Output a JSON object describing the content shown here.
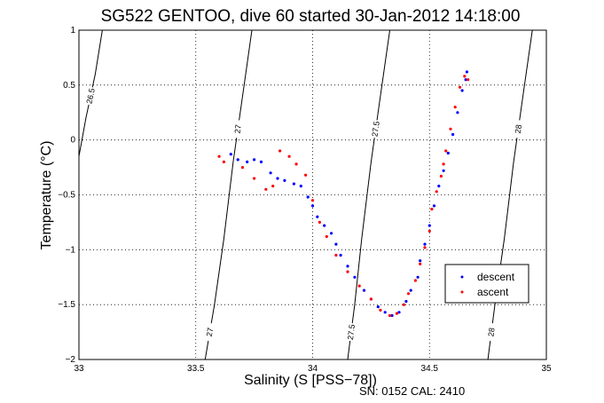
{
  "chart_data": {
    "type": "scatter",
    "title": "SG522 GENTOO, dive 60 started 30-Jan-2012 14:18:00",
    "xlabel": "Salinity (S [PSS−78])",
    "ylabel": "Temperature (°C)",
    "xlim": [
      33,
      35
    ],
    "ylim": [
      -2,
      1
    ],
    "x_ticks": [
      "33",
      "33.5",
      "34",
      "34.5",
      "35"
    ],
    "y_ticks": [
      "1",
      "0.5",
      "0",
      "−0.5",
      "−1",
      "−1.5",
      "−2"
    ],
    "grid": true,
    "legend_position": "lower-right",
    "series": [
      {
        "name": "descent",
        "color": "#0000ff",
        "points": [
          [
            33.65,
            -0.13
          ],
          [
            33.68,
            -0.18
          ],
          [
            33.72,
            -0.2
          ],
          [
            33.75,
            -0.18
          ],
          [
            33.78,
            -0.2
          ],
          [
            33.82,
            -0.3
          ],
          [
            33.85,
            -0.35
          ],
          [
            33.88,
            -0.37
          ],
          [
            33.92,
            -0.4
          ],
          [
            33.95,
            -0.42
          ],
          [
            33.98,
            -0.52
          ],
          [
            34.0,
            -0.6
          ],
          [
            34.02,
            -0.7
          ],
          [
            34.05,
            -0.78
          ],
          [
            34.08,
            -0.85
          ],
          [
            34.1,
            -0.95
          ],
          [
            34.12,
            -1.05
          ],
          [
            34.15,
            -1.15
          ],
          [
            34.18,
            -1.25
          ],
          [
            34.22,
            -1.37
          ],
          [
            34.25,
            -1.45
          ],
          [
            34.28,
            -1.52
          ],
          [
            34.31,
            -1.57
          ],
          [
            34.34,
            -1.6
          ],
          [
            34.37,
            -1.57
          ],
          [
            34.4,
            -1.47
          ],
          [
            34.42,
            -1.37
          ],
          [
            34.45,
            -1.25
          ],
          [
            34.46,
            -1.1
          ],
          [
            34.48,
            -0.95
          ],
          [
            34.5,
            -0.78
          ],
          [
            34.52,
            -0.6
          ],
          [
            34.54,
            -0.42
          ],
          [
            34.56,
            -0.28
          ],
          [
            34.58,
            -0.12
          ],
          [
            34.6,
            0.05
          ],
          [
            34.62,
            0.25
          ],
          [
            34.64,
            0.45
          ],
          [
            34.655,
            0.55
          ],
          [
            34.66,
            0.62
          ]
        ]
      },
      {
        "name": "ascent",
        "color": "#ff0000",
        "points": [
          [
            33.6,
            -0.15
          ],
          [
            33.62,
            -0.2
          ],
          [
            33.7,
            -0.25
          ],
          [
            33.75,
            -0.35
          ],
          [
            33.8,
            -0.45
          ],
          [
            33.83,
            -0.42
          ],
          [
            33.86,
            -0.1
          ],
          [
            33.9,
            -0.15
          ],
          [
            33.93,
            -0.22
          ],
          [
            33.97,
            -0.32
          ],
          [
            34.0,
            -0.55
          ],
          [
            34.03,
            -0.75
          ],
          [
            34.06,
            -0.88
          ],
          [
            34.1,
            -1.05
          ],
          [
            34.15,
            -1.2
          ],
          [
            34.2,
            -1.33
          ],
          [
            34.25,
            -1.45
          ],
          [
            34.29,
            -1.55
          ],
          [
            34.33,
            -1.6
          ],
          [
            34.36,
            -1.58
          ],
          [
            34.39,
            -1.5
          ],
          [
            34.41,
            -1.4
          ],
          [
            34.44,
            -1.28
          ],
          [
            34.46,
            -1.13
          ],
          [
            34.48,
            -0.98
          ],
          [
            34.5,
            -0.83
          ],
          [
            34.51,
            -0.63
          ],
          [
            34.53,
            -0.47
          ],
          [
            34.55,
            -0.33
          ],
          [
            34.56,
            -0.22
          ],
          [
            34.57,
            -0.1
          ],
          [
            34.59,
            0.1
          ],
          [
            34.61,
            0.3
          ],
          [
            34.63,
            0.48
          ],
          [
            34.65,
            0.58
          ],
          [
            34.665,
            0.55
          ]
        ]
      }
    ],
    "contours": [
      {
        "label": "26.5",
        "color": "#000000",
        "points": [
          [
            33.0,
            -0.15
          ],
          [
            33.03,
            0.2
          ],
          [
            33.07,
            0.6
          ],
          [
            33.1,
            1.0
          ]
        ]
      },
      {
        "label": "27",
        "color": "#000000",
        "points": [
          [
            33.54,
            -2.0
          ],
          [
            33.58,
            -1.5
          ],
          [
            33.62,
            -0.9
          ],
          [
            33.66,
            -0.2
          ],
          [
            33.7,
            0.4
          ],
          [
            33.74,
            1.0
          ]
        ]
      },
      {
        "label": "27.5",
        "color": "#000000",
        "points": [
          [
            34.15,
            -2.0
          ],
          [
            34.18,
            -1.5
          ],
          [
            34.21,
            -0.9
          ],
          [
            34.25,
            -0.2
          ],
          [
            34.29,
            0.4
          ],
          [
            34.33,
            1.0
          ]
        ]
      },
      {
        "label": "28",
        "color": "#000000",
        "points": [
          [
            34.75,
            -2.0
          ],
          [
            34.78,
            -1.5
          ],
          [
            34.82,
            -0.9
          ],
          [
            34.86,
            -0.2
          ],
          [
            34.9,
            0.4
          ],
          [
            34.94,
            1.0
          ]
        ]
      }
    ],
    "footer": "SN: 0152  CAL: 2410"
  }
}
